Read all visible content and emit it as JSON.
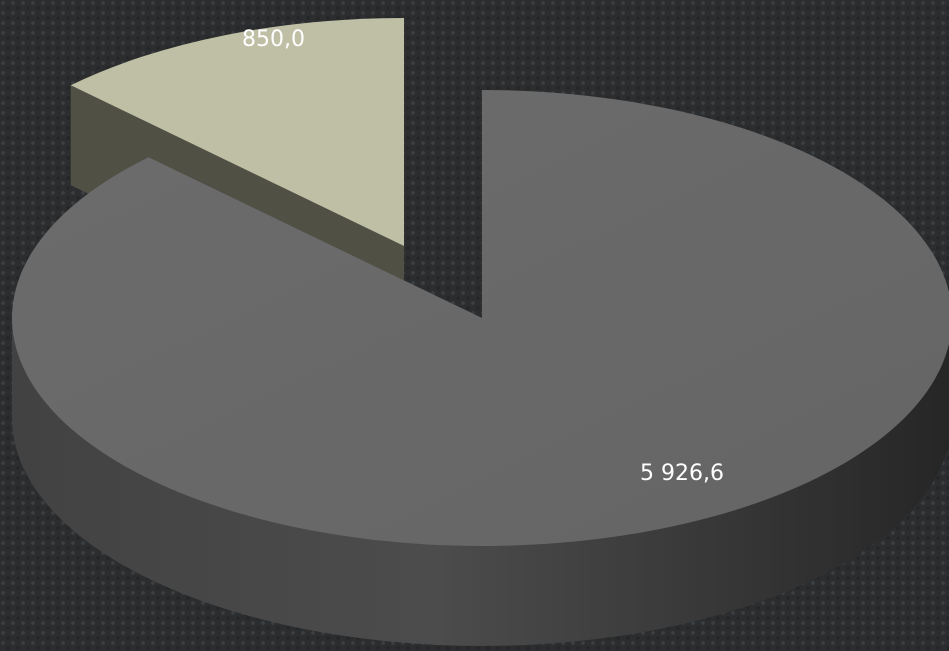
{
  "chart_data": {
    "type": "pie",
    "style": "3d-exploded",
    "values": [
      5926.6,
      850.0
    ],
    "data_labels": [
      "5 926,6",
      "850,0"
    ],
    "colors": [
      "#6a6a6a",
      "#bebfa4"
    ],
    "legend": "none"
  }
}
